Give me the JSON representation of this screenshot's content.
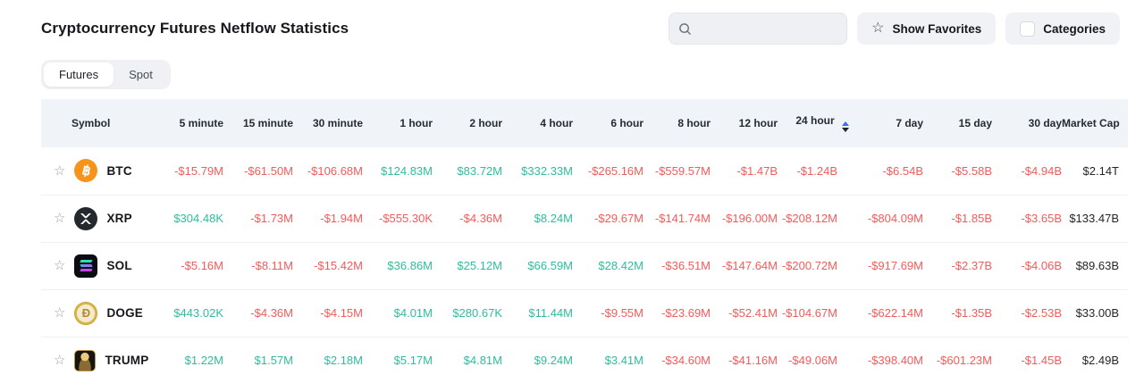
{
  "page": {
    "title": "Cryptocurrency Futures Netflow Statistics"
  },
  "toolbar": {
    "search": {
      "placeholder": "",
      "value": ""
    },
    "show_favorites_label": "Show Favorites",
    "categories_label": "Categories"
  },
  "tabs": {
    "items": [
      {
        "label": "Futures",
        "active": true
      },
      {
        "label": "Spot",
        "active": false
      }
    ]
  },
  "table": {
    "columns": [
      "Symbol",
      "5 minute",
      "15 minute",
      "30 minute",
      "1 hour",
      "2 hour",
      "4 hour",
      "6 hour",
      "8 hour",
      "12 hour",
      "24 hour",
      "7 day",
      "15 day",
      "30 day",
      "Market Cap"
    ],
    "sorted_column": "24 hour",
    "sort_direction": "asc",
    "rows": [
      {
        "symbol": "BTC",
        "icon": "btc",
        "values": [
          "-$15.79M",
          "-$61.50M",
          "-$106.68M",
          "$124.83M",
          "$83.72M",
          "$332.33M",
          "-$265.16M",
          "-$559.57M",
          "-$1.47B",
          "-$1.24B",
          "-$6.54B",
          "-$5.58B",
          "-$4.94B"
        ],
        "market_cap": "$2.14T"
      },
      {
        "symbol": "XRP",
        "icon": "xrp",
        "values": [
          "$304.48K",
          "-$1.73M",
          "-$1.94M",
          "-$555.30K",
          "-$4.36M",
          "$8.24M",
          "-$29.67M",
          "-$141.74M",
          "-$196.00M",
          "-$208.12M",
          "-$804.09M",
          "-$1.85B",
          "-$3.65B"
        ],
        "market_cap": "$133.47B"
      },
      {
        "symbol": "SOL",
        "icon": "sol",
        "values": [
          "-$5.16M",
          "-$8.11M",
          "-$15.42M",
          "$36.86M",
          "$25.12M",
          "$66.59M",
          "$28.42M",
          "-$36.51M",
          "-$147.64M",
          "-$200.72M",
          "-$917.69M",
          "-$2.37B",
          "-$4.06B"
        ],
        "market_cap": "$89.63B"
      },
      {
        "symbol": "DOGE",
        "icon": "doge",
        "values": [
          "$443.02K",
          "-$4.36M",
          "-$4.15M",
          "$4.01M",
          "$280.67K",
          "$11.44M",
          "-$9.55M",
          "-$23.69M",
          "-$52.41M",
          "-$104.67M",
          "-$622.14M",
          "-$1.35B",
          "-$2.53B"
        ],
        "market_cap": "$33.00B"
      },
      {
        "symbol": "TRUMP",
        "icon": "trump",
        "values": [
          "$1.22M",
          "$1.57M",
          "$2.18M",
          "$5.17M",
          "$4.81M",
          "$9.24M",
          "$3.41M",
          "-$34.60M",
          "-$41.16M",
          "-$49.06M",
          "-$398.40M",
          "-$601.23M",
          "-$1.45B"
        ],
        "market_cap": "$2.49B"
      }
    ]
  },
  "colors": {
    "positive": "#2fbc9e",
    "negative": "#f35b5b",
    "sort_active": "#3b6ef5",
    "header_bg": "#f0f3f7",
    "btc_brand": "#f7931a"
  }
}
